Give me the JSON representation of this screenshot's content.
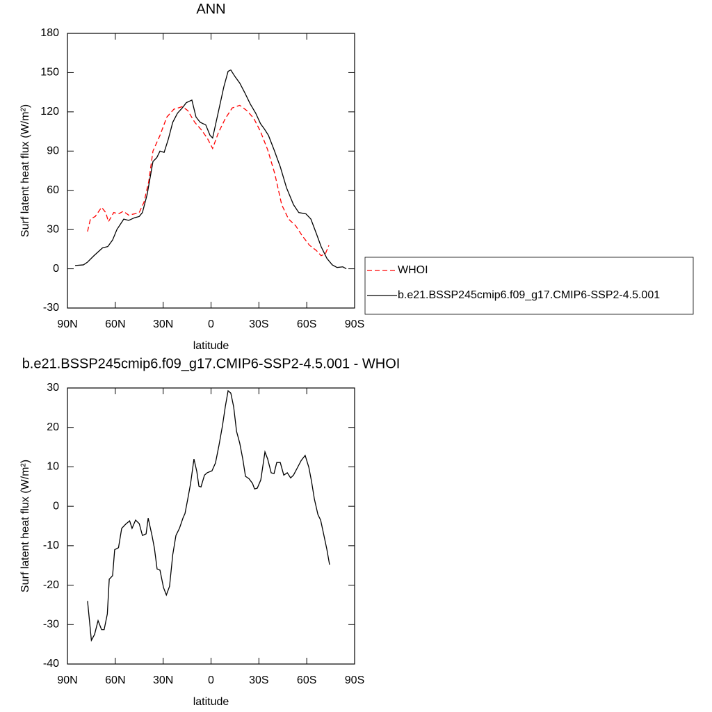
{
  "chart_data": [
    {
      "type": "line",
      "title": "ANN",
      "xlabel": "latitude",
      "ylabel": "Surf latent heat flux (W/m²)",
      "xlim": [
        90,
        -90
      ],
      "xticks": [
        {
          "value": 90,
          "label": "90N"
        },
        {
          "value": 60,
          "label": "60N"
        },
        {
          "value": 30,
          "label": "30N"
        },
        0,
        {
          "value": -30,
          "label": "30S"
        },
        {
          "value": -60,
          "label": "60S"
        },
        {
          "value": -90,
          "label": "90S"
        }
      ],
      "ylim": [
        -30,
        180
      ],
      "yticks": [
        -30,
        0,
        30,
        60,
        90,
        120,
        150,
        180
      ],
      "legend": "right",
      "series": [
        {
          "name": "WHOI",
          "color": "#ff0000",
          "linestyle": "dashed",
          "x": [
            77.4,
            75.6,
            72.6,
            68.6,
            66,
            64.3,
            61,
            58,
            55,
            51.6,
            48,
            45,
            42,
            39,
            36.4,
            32,
            27.7,
            23.3,
            18,
            14.6,
            10.2,
            5.9,
            2.4,
            -1,
            -4.6,
            -9,
            -13.3,
            -18,
            -22.4,
            -26.8,
            -31,
            -35.5,
            -39.9,
            -44.3,
            -48.6,
            -53,
            -57.3,
            -61.7,
            -66,
            -69,
            -71.7,
            -73.9
          ],
          "values": [
            28.5,
            38,
            40,
            47,
            43,
            36,
            43,
            42,
            44,
            41,
            42,
            43,
            51,
            67,
            90,
            102,
            116,
            122,
            124,
            121,
            112,
            106,
            100,
            92,
            104,
            115,
            123,
            125,
            121,
            115,
            105,
            91,
            73,
            49,
            38,
            33,
            25,
            18,
            14,
            10,
            11.5,
            18
          ]
        },
        {
          "name": "b.e21.BSSP245cmip6.f09_g17.CMIP6-SSP2-4.5.001",
          "color": "#000000",
          "linestyle": "solid",
          "x": [
            85.2,
            80,
            77.5,
            73.4,
            68,
            64.7,
            61.7,
            59,
            54.7,
            51.6,
            48,
            45,
            43,
            40,
            36.4,
            34,
            32,
            29.4,
            26.8,
            24,
            21,
            18,
            15.5,
            12,
            9.4,
            6.8,
            3.3,
            0.6,
            -1,
            -4.6,
            -8,
            -10.7,
            -12.4,
            -15,
            -18,
            -21,
            -24.6,
            -28,
            -31,
            -33.4,
            -36,
            -39.5,
            -43.4,
            -47.3,
            -51.7,
            -55,
            -59.5,
            -62.6,
            -66,
            -69,
            -72.6,
            -76,
            -79,
            -82.6,
            -84.8
          ],
          "values": [
            2.5,
            3,
            5,
            10,
            16,
            17,
            22,
            30,
            38,
            37,
            39,
            40,
            43,
            57,
            82,
            85,
            90,
            89,
            99,
            112,
            119,
            123,
            127,
            129,
            116,
            112,
            110,
            102,
            100,
            120,
            139,
            151,
            152,
            147,
            142,
            135,
            126,
            119,
            111,
            107,
            102,
            91,
            78,
            62,
            49,
            43,
            42,
            38,
            27,
            17,
            8,
            3,
            1,
            1.5,
            0
          ]
        }
      ]
    },
    {
      "type": "line",
      "title": "b.e21.BSSP245cmip6.f09_g17.CMIP6-SSP2-4.5.001 - WHOI",
      "xlabel": "latitude",
      "ylabel": "Surf latent heat flux (W/m²)",
      "xlim": [
        90,
        -90
      ],
      "xticks": [
        {
          "value": 90,
          "label": "90N"
        },
        {
          "value": 60,
          "label": "60N"
        },
        {
          "value": 30,
          "label": "30N"
        },
        0,
        {
          "value": -30,
          "label": "30S"
        },
        {
          "value": -60,
          "label": "60S"
        },
        {
          "value": -90,
          "label": "90S"
        }
      ],
      "ylim": [
        -40,
        30
      ],
      "yticks": [
        -40,
        -30,
        -20,
        -10,
        0,
        10,
        20,
        30
      ],
      "series": [
        {
          "color": "#000000",
          "linestyle": "solid",
          "x": [
            77.4,
            75,
            73,
            70.8,
            68.6,
            67,
            65,
            63.8,
            61.7,
            60.4,
            58,
            56,
            53.4,
            51,
            49.5,
            47.3,
            45,
            43,
            40.7,
            39.4,
            37,
            35.5,
            33.8,
            32,
            29.8,
            28,
            26,
            24,
            22,
            19.8,
            17.6,
            16.3,
            14.6,
            12.8,
            10.7,
            8.9,
            7.6,
            6.3,
            4.1,
            2.4,
            -0.6,
            -2.8,
            -5,
            -7.2,
            -9,
            -10.7,
            -12.4,
            -14.2,
            -16,
            -18,
            -19.9,
            -21.6,
            -23.8,
            -26,
            -27.3,
            -29,
            -31.2,
            -33.8,
            -35.5,
            -37.7,
            -39.5,
            -41.2,
            -43.4,
            -45.6,
            -47.8,
            -49.9,
            -51.7,
            -54.3,
            -56.5,
            -59,
            -61.3,
            -63,
            -64.8,
            -67,
            -68.7,
            -70.4,
            -72.6,
            -74.3
          ],
          "values": [
            -24,
            -34,
            -32.5,
            -29,
            -31.3,
            -31.3,
            -27.3,
            -18.5,
            -17.6,
            -11,
            -10.5,
            -5.6,
            -4.5,
            -3.7,
            -5.6,
            -3.5,
            -4.4,
            -7.4,
            -7,
            -3,
            -7.4,
            -10.6,
            -15.9,
            -16.2,
            -20.6,
            -22.5,
            -20.3,
            -12.3,
            -7.4,
            -5.6,
            -3,
            -1.8,
            1.8,
            5.8,
            12,
            8.8,
            5.1,
            4.9,
            7.9,
            8.5,
            9,
            11,
            15.5,
            20.5,
            25.4,
            29.3,
            28.7,
            25.2,
            19,
            16,
            12,
            7.6,
            7,
            5.8,
            4.4,
            4.6,
            6.7,
            13.8,
            12,
            8.5,
            8.3,
            11.1,
            11.1,
            7.9,
            8.5,
            7.2,
            7.9,
            9.9,
            11.6,
            12.9,
            9.9,
            6.3,
            1.8,
            -2.1,
            -3.5,
            -6.7,
            -10.9,
            -14.8
          ]
        }
      ]
    }
  ]
}
